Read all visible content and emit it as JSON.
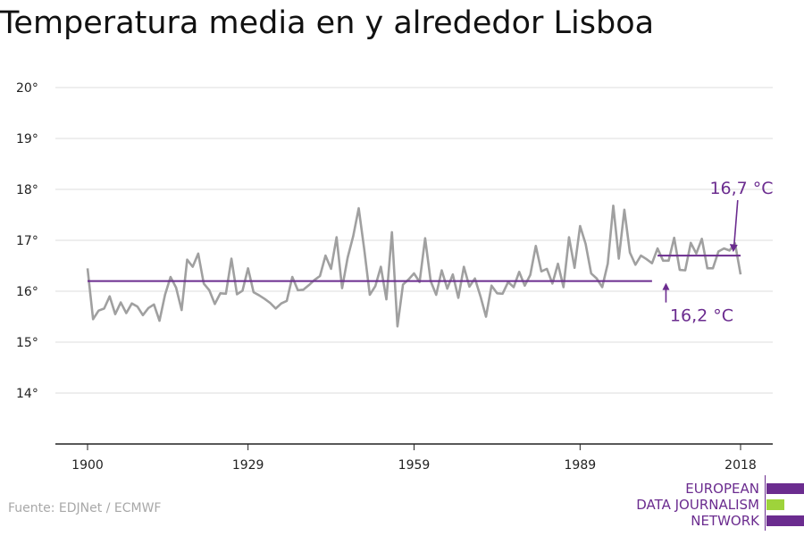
{
  "title": "Temperatura media en y alrededor Lisboa",
  "source": "Fuente: EDJNet / ECMWF",
  "logo": {
    "lines": [
      "EUROPEAN",
      "DATA JOURNALISM",
      "NETWORK"
    ],
    "colors": {
      "purple": "#6b2c8f",
      "green": "#9ed33b"
    }
  },
  "colors": {
    "series": "#a0a0a0",
    "average": "#6b2c8f",
    "grid": "#dcdcdc",
    "axis": "#222222"
  },
  "chart_data": {
    "type": "line",
    "title": "Temperatura media en y alrededor Lisboa",
    "xlabel": "",
    "ylabel": "",
    "xlim": [
      1900,
      2018
    ],
    "ylim": [
      13,
      20
    ],
    "grid": true,
    "x_ticks": [
      1900,
      1929,
      1959,
      1989,
      2018
    ],
    "y_ticks": [
      {
        "value": 14,
        "label": "14°"
      },
      {
        "value": 15,
        "label": "15°"
      },
      {
        "value": 16,
        "label": "16°"
      },
      {
        "value": 17,
        "label": "17°"
      },
      {
        "value": 18,
        "label": "18°"
      },
      {
        "value": 19,
        "label": "19°"
      },
      {
        "value": 20,
        "label": "20°"
      }
    ],
    "series": [
      {
        "x_start": 1900,
        "values": [
          16.45,
          15.45,
          15.62,
          15.66,
          15.9,
          15.55,
          15.78,
          15.57,
          15.76,
          15.7,
          15.53,
          15.67,
          15.74,
          15.42,
          15.93,
          16.28,
          16.07,
          15.63,
          16.62,
          16.48,
          16.74,
          16.15,
          16.02,
          15.75,
          15.96,
          15.95,
          16.64,
          15.94,
          16.01,
          16.45,
          15.98,
          15.92,
          15.85,
          15.77,
          15.66,
          15.76,
          15.81,
          16.28,
          16.02,
          16.03,
          16.12,
          16.22,
          16.3,
          16.7,
          16.44,
          17.06,
          16.06,
          16.66,
          17.08,
          17.63,
          16.82,
          15.93,
          16.1,
          16.48,
          15.84,
          17.16,
          15.31,
          16.13,
          16.23,
          16.35,
          16.18,
          17.04,
          16.2,
          15.93,
          16.41,
          16.05,
          16.33,
          15.87,
          16.48,
          16.09,
          16.25,
          15.9,
          15.5,
          16.11,
          15.96,
          15.95,
          16.18,
          16.08,
          16.38,
          16.11,
          16.32,
          16.89,
          16.39,
          16.44,
          16.15,
          16.54,
          16.08,
          17.06,
          16.46,
          17.28,
          16.93,
          16.35,
          16.25,
          16.08,
          16.54,
          17.68,
          16.64,
          17.6,
          16.76,
          16.52,
          16.7,
          16.63,
          16.55,
          16.84,
          16.6,
          16.6,
          17.05,
          16.42,
          16.41,
          16.95,
          16.74,
          17.03,
          16.45,
          16.45,
          16.78,
          16.84,
          16.8,
          16.94,
          16.33
        ]
      }
    ],
    "averages": [
      {
        "from": 1900,
        "to": 2002,
        "value": 16.2,
        "label": "16,2 °C"
      },
      {
        "from": 2003,
        "to": 2018,
        "value": 16.7,
        "label": "16,7 °C"
      }
    ]
  }
}
